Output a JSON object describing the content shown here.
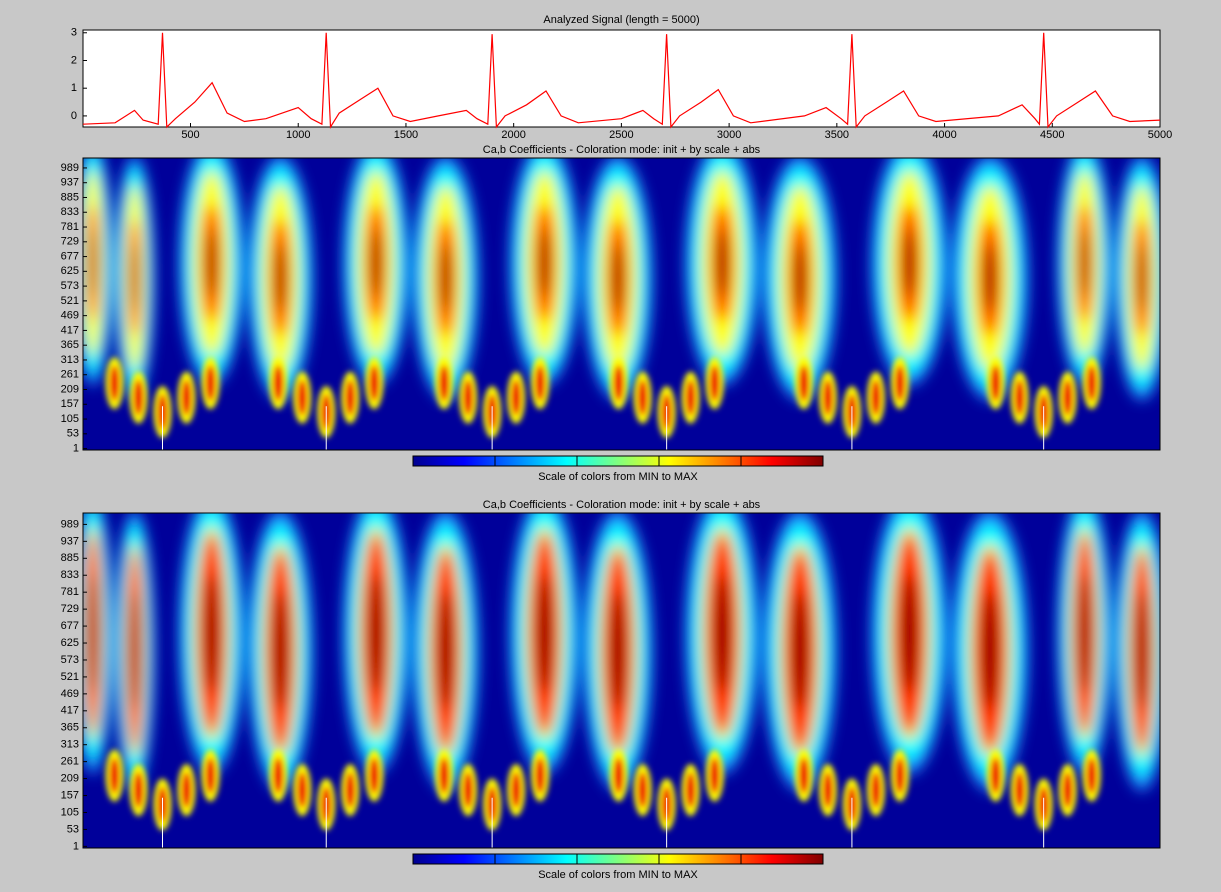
{
  "chart_data": [
    {
      "type": "line",
      "title": "Analyzed Signal (length = 5000)",
      "x": [
        1,
        150,
        240,
        280,
        350,
        370,
        390,
        430,
        520,
        600,
        670,
        750,
        850,
        1000,
        1060,
        1110,
        1130,
        1150,
        1190,
        1290,
        1370,
        1440,
        1520,
        1650,
        1780,
        1830,
        1880,
        1900,
        1920,
        1960,
        2060,
        2150,
        2220,
        2300,
        2500,
        2600,
        2650,
        2690,
        2710,
        2730,
        2770,
        2870,
        2950,
        3020,
        3100,
        3350,
        3450,
        3520,
        3550,
        3570,
        3590,
        3630,
        3730,
        3810,
        3880,
        3960,
        4250,
        4360,
        4420,
        4440,
        4460,
        4480,
        4520,
        4620,
        4700,
        4780,
        4860,
        5000
      ],
      "series": [
        {
          "color": "#ff0000",
          "values": [
            -0.3,
            -0.25,
            0.2,
            -0.15,
            -0.3,
            3.0,
            -0.4,
            -0.1,
            0.5,
            1.2,
            0.1,
            -0.2,
            -0.1,
            0.3,
            -0.1,
            -0.3,
            3.0,
            -0.4,
            0.1,
            0.6,
            1.0,
            0.0,
            -0.2,
            0.0,
            0.2,
            -0.1,
            -0.3,
            2.95,
            -0.4,
            0.0,
            0.4,
            0.9,
            0.0,
            -0.25,
            -0.1,
            0.2,
            -0.1,
            -0.3,
            2.95,
            -0.4,
            0.0,
            0.5,
            0.95,
            0.0,
            -0.25,
            0.0,
            0.3,
            -0.1,
            -0.3,
            2.95,
            -0.4,
            0.0,
            0.5,
            0.9,
            0.0,
            -0.2,
            0.0,
            0.4,
            -0.1,
            -0.3,
            3.0,
            -0.4,
            0.0,
            0.5,
            0.9,
            0.0,
            -0.2,
            -0.15
          ]
        }
      ],
      "xlim": [
        1,
        5000
      ],
      "xticks": [
        500,
        1000,
        1500,
        2000,
        2500,
        3000,
        3500,
        4000,
        4500,
        5000
      ],
      "ylim": [
        -0.4,
        3.1
      ],
      "yticks": [
        0,
        1,
        2,
        3
      ]
    },
    {
      "type": "heatmap",
      "title": "Ca,b Coefficients - Coloration mode: init + by scale + abs",
      "ylim": [
        -4,
        1024
      ],
      "yticks": [
        1,
        53,
        105,
        157,
        209,
        261,
        313,
        365,
        417,
        469,
        521,
        573,
        625,
        677,
        729,
        781,
        833,
        885,
        937,
        989
      ],
      "colorbar_label": "Scale of colors from MIN to MAX"
    },
    {
      "type": "heatmap",
      "title": "Ca,b Coefficients - Coloration mode: init + by scale + abs",
      "ylim": [
        -4,
        1024
      ],
      "yticks": [
        1,
        53,
        105,
        157,
        209,
        261,
        313,
        365,
        417,
        469,
        521,
        573,
        625,
        677,
        729,
        781,
        833,
        885,
        937,
        989
      ],
      "colorbar_label": "Scale of colors from MIN to MAX"
    }
  ]
}
